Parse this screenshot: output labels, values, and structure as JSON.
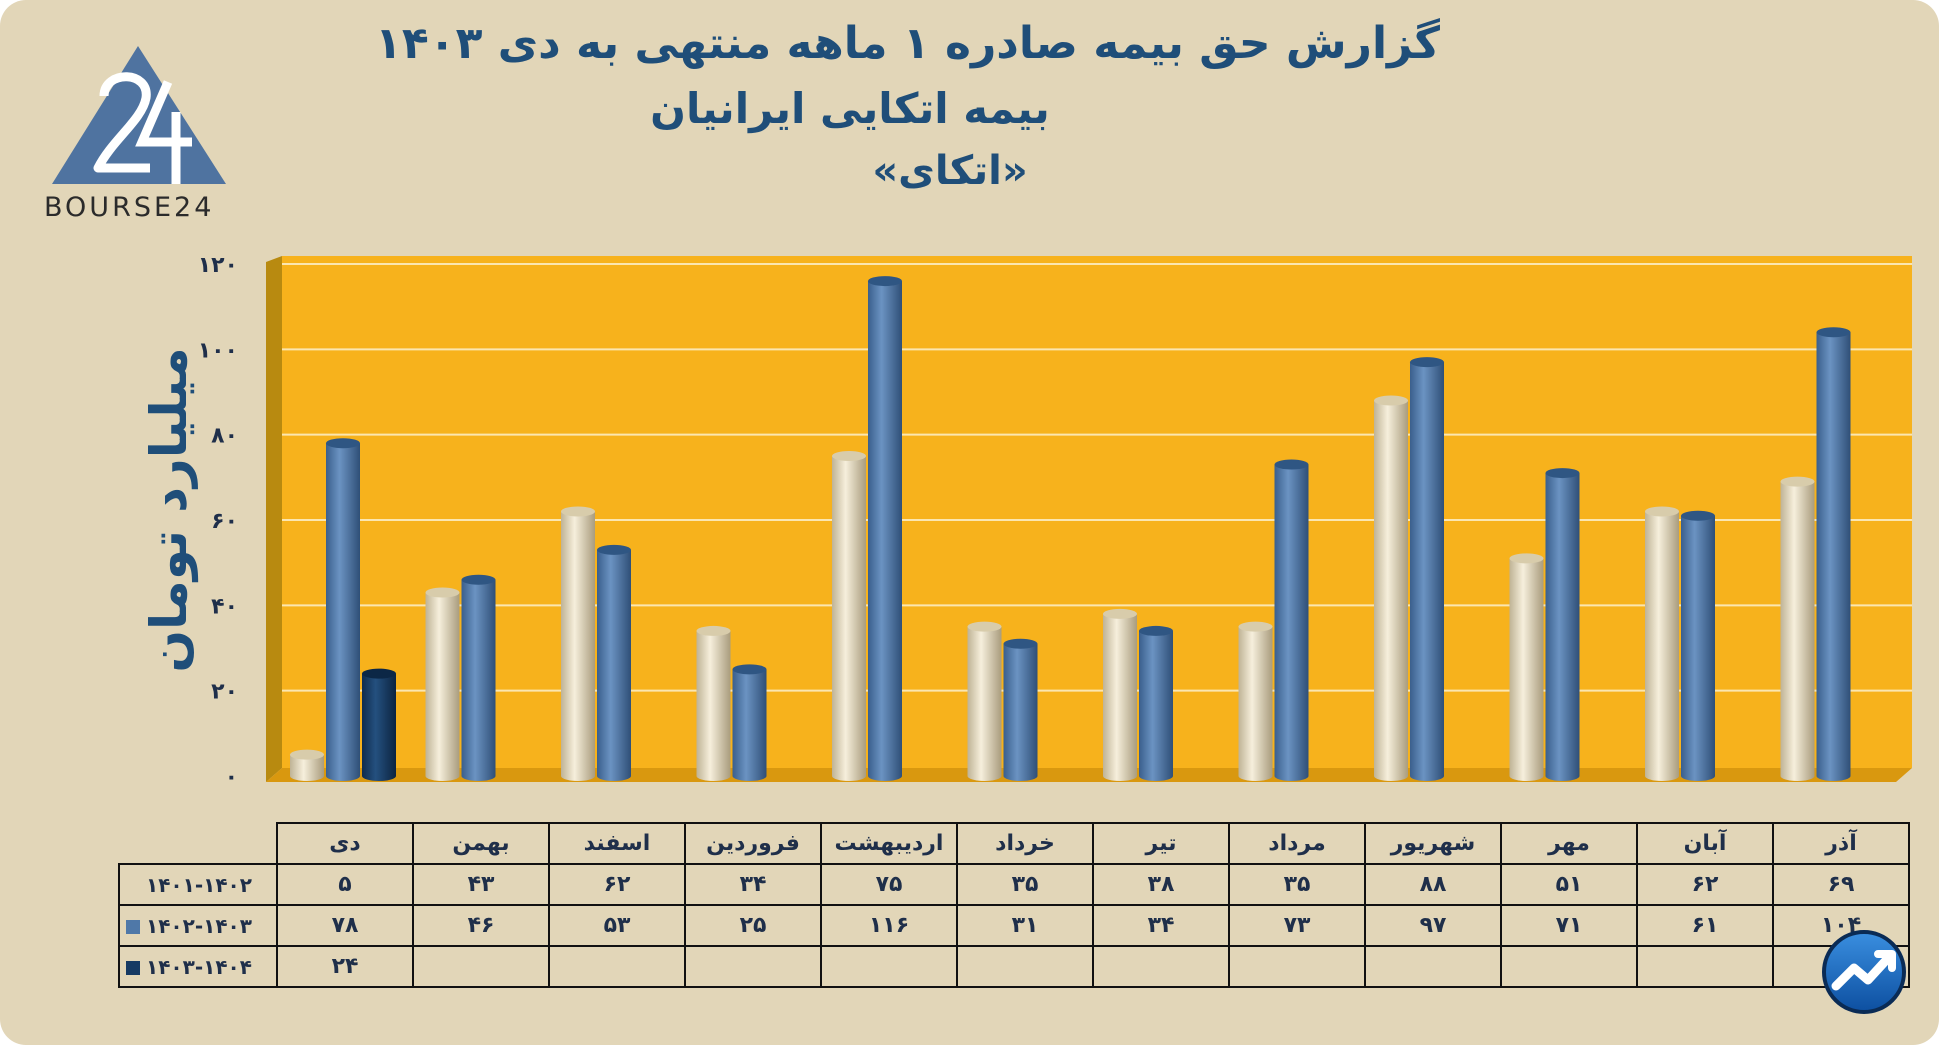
{
  "header": {
    "title_line1": "گزارش  حق بیمه صادره ۱ ماهه منتهی به دی ۱۴۰۳",
    "title_line2": "بیمه اتکایی ایرانیان",
    "title_line3": "«اتکای»",
    "logo_text": "BOURSE24"
  },
  "colors": {
    "background": "#e2d6b8",
    "plot_area": "#f7b21c",
    "series_1401_1402": "#e9dfc4",
    "series_1402_1403": "#4f78a8",
    "series_1403_1404": "#163a63",
    "title_text": "#1f4e79"
  },
  "icons": {
    "logo": "bourse24-logo-triangle",
    "brand_badge": "trend-arrow-badge-icon"
  },
  "chart_data": {
    "type": "bar",
    "ylabel": "میلیارد تومان",
    "ylim": [
      0,
      120
    ],
    "yticks": [
      0,
      20,
      40,
      60,
      80,
      100,
      120
    ],
    "ytick_labels": [
      "۰",
      "۲۰",
      "۴۰",
      "۶۰",
      "۸۰",
      "۱۰۰",
      "۱۲۰"
    ],
    "grid": true,
    "categories": [
      "دی",
      "بهمن",
      "اسفند",
      "فروردین",
      "اردیبهشت",
      "خرداد",
      "تیر",
      "مرداد",
      "شهریور",
      "مهر",
      "آبان",
      "آذر"
    ],
    "series": [
      {
        "name": "۱۴۰۱-۱۴۰۲",
        "values": [
          5,
          43,
          62,
          34,
          75,
          35,
          38,
          35,
          88,
          51,
          62,
          69
        ],
        "labels": [
          "۵",
          "۴۳",
          "۶۲",
          "۳۴",
          "۷۵",
          "۳۵",
          "۳۸",
          "۳۵",
          "۸۸",
          "۵۱",
          "۶۲",
          "۶۹"
        ]
      },
      {
        "name": "۱۴۰۲-۱۴۰۳",
        "values": [
          78,
          46,
          53,
          25,
          116,
          31,
          34,
          73,
          97,
          71,
          61,
          104
        ],
        "labels": [
          "۷۸",
          "۴۶",
          "۵۳",
          "۲۵",
          "۱۱۶",
          "۳۱",
          "۳۴",
          "۷۳",
          "۹۷",
          "۷۱",
          "۶۱",
          "۱۰۴"
        ]
      },
      {
        "name": "۱۴۰۳-۱۴۰۴",
        "values": [
          24,
          null,
          null,
          null,
          null,
          null,
          null,
          null,
          null,
          null,
          null,
          null
        ],
        "labels": [
          "۲۴",
          "",
          "",
          "",
          "",
          "",
          "",
          "",
          "",
          "",
          "",
          ""
        ]
      }
    ]
  }
}
